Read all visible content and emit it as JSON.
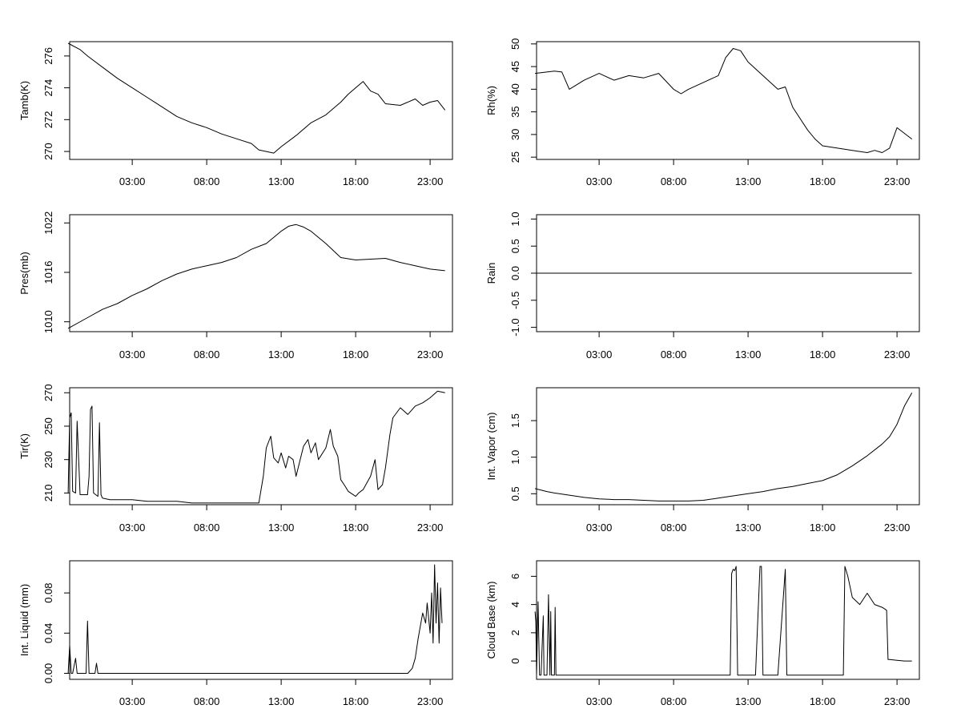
{
  "chart_data": [
    {
      "type": "line",
      "ylabel": "Tamb(K)",
      "xticks": [
        "03:00",
        "08:00",
        "13:00",
        "18:00",
        "23:00"
      ],
      "yticks": [
        "270",
        "272",
        "274",
        "276"
      ],
      "xlim_hours": [
        -1.2,
        24.5
      ],
      "ylim": [
        269.5,
        276.9
      ],
      "series": [
        {
          "x_hours": [
            -1.3,
            -0.5,
            0,
            1,
            2,
            3,
            4,
            5,
            6,
            7,
            8,
            9,
            10,
            11,
            11.5,
            12,
            12.5,
            13,
            14,
            15,
            16,
            17,
            17.5,
            18,
            18.5,
            19,
            19.5,
            20,
            21,
            22,
            22.5,
            23,
            23.5,
            24
          ],
          "values": [
            276.8,
            276.4,
            276.0,
            275.3,
            274.6,
            274.0,
            273.4,
            272.8,
            272.2,
            271.8,
            271.5,
            271.1,
            270.8,
            270.5,
            270.1,
            270.0,
            269.9,
            270.3,
            271.0,
            271.8,
            272.3,
            273.1,
            273.6,
            274.0,
            274.4,
            273.8,
            273.6,
            273.0,
            272.9,
            273.3,
            272.9,
            273.1,
            273.2,
            272.6
          ]
        }
      ]
    },
    {
      "type": "line",
      "ylabel": "Rh(%)",
      "xticks": [
        "03:00",
        "08:00",
        "13:00",
        "18:00",
        "23:00"
      ],
      "yticks": [
        "25",
        "30",
        "35",
        "40",
        "45",
        "50"
      ],
      "xlim_hours": [
        -1.2,
        24.5
      ],
      "ylim": [
        24.5,
        50.5
      ],
      "series": [
        {
          "x_hours": [
            -1.3,
            0,
            0.5,
            1,
            2,
            3,
            4,
            5,
            6,
            7,
            8,
            8.5,
            9,
            10,
            11,
            11.5,
            12,
            12.5,
            13,
            14,
            15,
            15.5,
            16,
            17,
            17.5,
            18,
            19,
            20,
            21,
            21.5,
            22,
            22.5,
            23,
            24
          ],
          "values": [
            43.5,
            44.0,
            43.8,
            40.0,
            42.0,
            43.5,
            42.0,
            43.0,
            42.5,
            43.5,
            40.0,
            39.0,
            40.0,
            41.5,
            43.0,
            47.0,
            49.0,
            48.5,
            46.0,
            43.0,
            40.0,
            40.5,
            36.0,
            31.0,
            29.0,
            27.5,
            27.0,
            26.5,
            26.0,
            26.5,
            26.0,
            27.0,
            31.5,
            29.0
          ]
        }
      ]
    },
    {
      "type": "line",
      "ylabel": "Pres(mb)",
      "xticks": [
        "03:00",
        "08:00",
        "13:00",
        "18:00",
        "23:00"
      ],
      "yticks": [
        "1010",
        "1016",
        "1022"
      ],
      "xlim_hours": [
        -1.2,
        24.5
      ],
      "ylim": [
        1008.8,
        1023
      ],
      "series": [
        {
          "x_hours": [
            -1.3,
            0,
            1,
            2,
            3,
            4,
            5,
            6,
            7,
            8,
            9,
            10,
            11,
            12,
            13,
            13.5,
            14,
            14.5,
            15,
            16,
            17,
            18,
            19,
            20,
            21,
            22,
            23,
            24
          ],
          "values": [
            1009.2,
            1010.5,
            1011.5,
            1012.2,
            1013.2,
            1014.0,
            1015.0,
            1015.8,
            1016.4,
            1016.8,
            1017.2,
            1017.8,
            1018.8,
            1019.5,
            1021.0,
            1021.6,
            1021.8,
            1021.5,
            1021.0,
            1019.5,
            1017.8,
            1017.5,
            1017.6,
            1017.7,
            1017.2,
            1016.8,
            1016.4,
            1016.2
          ]
        }
      ]
    },
    {
      "type": "line",
      "ylabel": "Rain",
      "xticks": [
        "03:00",
        "08:00",
        "13:00",
        "18:00",
        "23:00"
      ],
      "yticks": [
        "-1.0",
        "-0.5",
        "0.0",
        "0.5",
        "1.0"
      ],
      "xlim_hours": [
        -1.2,
        24.5
      ],
      "ylim": [
        -1.08,
        1.08
      ],
      "series": [
        {
          "x_hours": [
            -1.3,
            24
          ],
          "values": [
            0,
            0
          ]
        }
      ]
    },
    {
      "type": "line",
      "ylabel": "Tir(K)",
      "xticks": [
        "03:00",
        "08:00",
        "13:00",
        "18:00",
        "23:00"
      ],
      "yticks": [
        "210",
        "230",
        "250",
        "270"
      ],
      "xlim_hours": [
        -1.2,
        24.5
      ],
      "ylim": [
        203,
        273
      ],
      "series": [
        {
          "x_hours": [
            -1.3,
            -1.2,
            -1.1,
            -1.0,
            -0.8,
            -0.7,
            -0.5,
            0.0,
            0.1,
            0.2,
            0.3,
            0.4,
            0.7,
            0.8,
            0.9,
            1.0,
            1.5,
            2,
            3,
            4,
            5,
            6,
            7,
            8,
            9,
            10,
            11,
            11.5,
            11.8,
            12.0,
            12.3,
            12.5,
            12.8,
            13.0,
            13.3,
            13.5,
            13.8,
            14.0,
            14.5,
            14.8,
            15.0,
            15.3,
            15.5,
            16.0,
            16.3,
            16.5,
            16.8,
            17.0,
            17.3,
            17.5,
            18.0,
            18.2,
            18.5,
            19.0,
            19.3,
            19.5,
            19.8,
            20.0,
            20.3,
            20.5,
            21.0,
            21.5,
            22.0,
            22.5,
            23.0,
            23.5,
            24.0
          ],
          "values": [
            210,
            255,
            258,
            211,
            210,
            253,
            209,
            209,
            220,
            260,
            262,
            210,
            208,
            252,
            209,
            207,
            206,
            206,
            206,
            205,
            205,
            205,
            204,
            204,
            204,
            204,
            204,
            204,
            220,
            237,
            244,
            231,
            228,
            234,
            225,
            232,
            230,
            220,
            238,
            242,
            234,
            240,
            230,
            237,
            248,
            238,
            232,
            218,
            214,
            211,
            208,
            210,
            212,
            220,
            230,
            212,
            215,
            225,
            245,
            255,
            261,
            257,
            262,
            264,
            267,
            271,
            270
          ]
        }
      ]
    },
    {
      "type": "line",
      "ylabel": "Int. Vapor (cm)",
      "xticks": [
        "03:00",
        "08:00",
        "13:00",
        "18:00",
        "23:00"
      ],
      "yticks": [
        "0.5",
        "1.0",
        "1.5"
      ],
      "xlim_hours": [
        -1.2,
        24.5
      ],
      "ylim": [
        0.35,
        1.95
      ],
      "series": [
        {
          "x_hours": [
            -1.3,
            -0.5,
            0,
            1,
            2,
            3,
            4,
            5,
            6,
            7,
            8,
            9,
            10,
            11,
            12,
            13,
            14,
            15,
            16,
            17,
            18,
            19,
            20,
            21,
            22,
            22.5,
            23,
            23.5,
            24
          ],
          "values": [
            0.57,
            0.53,
            0.51,
            0.48,
            0.45,
            0.43,
            0.42,
            0.42,
            0.41,
            0.4,
            0.4,
            0.4,
            0.41,
            0.44,
            0.47,
            0.5,
            0.53,
            0.57,
            0.6,
            0.64,
            0.68,
            0.76,
            0.88,
            1.02,
            1.18,
            1.28,
            1.45,
            1.7,
            1.88
          ]
        }
      ]
    },
    {
      "type": "line",
      "ylabel": "Int. Liquid (mm)",
      "xticks": [
        "03:00",
        "08:00",
        "13:00",
        "18:00",
        "23:00"
      ],
      "yticks": [
        "0.00",
        "0.04",
        "0.08"
      ],
      "xlim_hours": [
        -1.2,
        24.5
      ],
      "ylim": [
        -0.006,
        0.112
      ],
      "series": [
        {
          "x_hours": [
            -1.3,
            -1.2,
            -1.1,
            -1.0,
            -0.8,
            -0.7,
            -0.5,
            -0.1,
            0.0,
            0.1,
            0.2,
            0.5,
            0.6,
            0.7,
            1,
            5,
            10,
            15,
            20,
            21.0,
            21.5,
            21.8,
            22.0,
            22.2,
            22.5,
            22.7,
            22.8,
            23.0,
            23.1,
            23.2,
            23.3,
            23.4,
            23.5,
            23.6,
            23.7,
            23.8
          ],
          "values": [
            0,
            0.028,
            0,
            0,
            0.015,
            0,
            0,
            0,
            0.052,
            0,
            0,
            0,
            0.01,
            0,
            0,
            0,
            0,
            0,
            0,
            0,
            0,
            0.005,
            0.015,
            0.035,
            0.06,
            0.05,
            0.07,
            0.04,
            0.08,
            0.03,
            0.108,
            0.05,
            0.09,
            0.03,
            0.085,
            0.05
          ]
        }
      ]
    },
    {
      "type": "line",
      "ylabel": "Cloud Base (km)",
      "xticks": [
        "03:00",
        "08:00",
        "13:00",
        "18:00",
        "23:00"
      ],
      "yticks": [
        "0",
        "2",
        "4",
        "6"
      ],
      "xlim_hours": [
        -1.2,
        24.5
      ],
      "ylim": [
        -1.3,
        7.1
      ],
      "series": [
        {
          "x_hours": [
            -1.3,
            -1.25,
            -1.2,
            -1.1,
            -1.0,
            -0.9,
            -0.75,
            -0.7,
            -0.5,
            -0.4,
            -0.3,
            -0.25,
            -0.2,
            0.0,
            0.05,
            0.1,
            1,
            5,
            10,
            11.8,
            11.9,
            12.0,
            12.1,
            12.2,
            12.3,
            13.5,
            13.8,
            13.9,
            14.0,
            15.0,
            15.5,
            15.6,
            15.7,
            16.0,
            18.0,
            19.4,
            19.5,
            19.7,
            20.0,
            20.5,
            21.0,
            21.5,
            22.0,
            22.3,
            22.4,
            22.5,
            23.0,
            23.5,
            24.0
          ],
          "values": [
            3.5,
            2.8,
            -1,
            4.2,
            -1,
            -1,
            3.2,
            -1,
            -1,
            4.7,
            -1,
            3.5,
            -1,
            -1,
            3.8,
            -1,
            -1,
            -1,
            -1,
            -1,
            6.2,
            6.5,
            6.4,
            6.7,
            -1,
            -1,
            6.7,
            6.7,
            -1,
            -1,
            6.5,
            -1,
            -1,
            -1,
            -1,
            -1,
            6.7,
            6.0,
            4.5,
            4.0,
            4.8,
            4.0,
            3.8,
            3.6,
            0.1,
            0.1,
            0.05,
            0.0,
            0.0
          ]
        }
      ]
    }
  ]
}
